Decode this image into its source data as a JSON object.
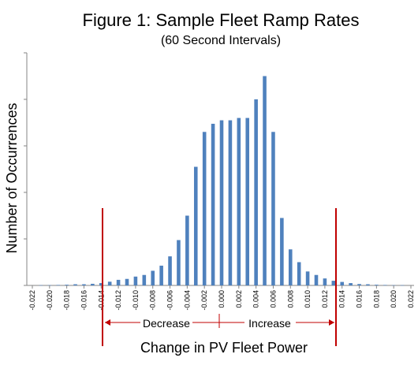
{
  "chart_data": {
    "type": "bar",
    "title": "Figure 1: Sample Fleet Ramp Rates",
    "subtitle": "(60 Second Intervals)",
    "xlabel": "Change in PV Fleet Power",
    "ylabel": "Number of Occurrences",
    "x_tick_labels": [
      "-0.022",
      "-0.020",
      "-0.018",
      "-0.016",
      "-0.014",
      "-0.012",
      "-0.010",
      "-0.008",
      "-0.006",
      "-0.004",
      "-0.002",
      "0.000",
      "0.002",
      "0.004",
      "0.006",
      "0.008",
      "0.010",
      "0.012",
      "0.014",
      "0.016",
      "0.018",
      "0.020",
      "0.022"
    ],
    "x_range": [
      -0.022,
      0.022
    ],
    "ylim": [
      0,
      100
    ],
    "y_tick_labels_shown": false,
    "bar_color": "#4f81bd",
    "limit_line_color": "#c00000",
    "limits": [
      -0.0145,
      0.0145
    ],
    "region_labels": {
      "decrease": "Decrease",
      "increase": "Increase"
    },
    "x": [
      -0.021,
      -0.02,
      -0.019,
      -0.018,
      -0.017,
      -0.016,
      -0.015,
      -0.014,
      -0.013,
      -0.012,
      -0.011,
      -0.01,
      -0.009,
      -0.008,
      -0.007,
      -0.006,
      -0.005,
      -0.004,
      -0.003,
      -0.002,
      -0.001,
      0.0,
      0.001,
      0.002,
      0.003,
      0.004,
      0.005,
      0.006,
      0.007,
      0.008,
      0.009,
      0.01,
      0.011,
      0.012,
      0.013,
      0.014,
      0.015,
      0.016,
      0.017,
      0.018,
      0.019,
      0.02,
      0.021
    ],
    "values": [
      0.1,
      0.1,
      0.2,
      0.3,
      0.5,
      0.5,
      0.7,
      1.0,
      1.6,
      2.4,
      2.8,
      3.8,
      4.5,
      6.3,
      8.5,
      12.5,
      19.5,
      30,
      51,
      66,
      69.5,
      71,
      71,
      72,
      72,
      80,
      90,
      66,
      29,
      15.5,
      10,
      6,
      4.5,
      3,
      2,
      1.5,
      1,
      0.6,
      0.5,
      0.3,
      0.2,
      0.1,
      0.1
    ]
  }
}
